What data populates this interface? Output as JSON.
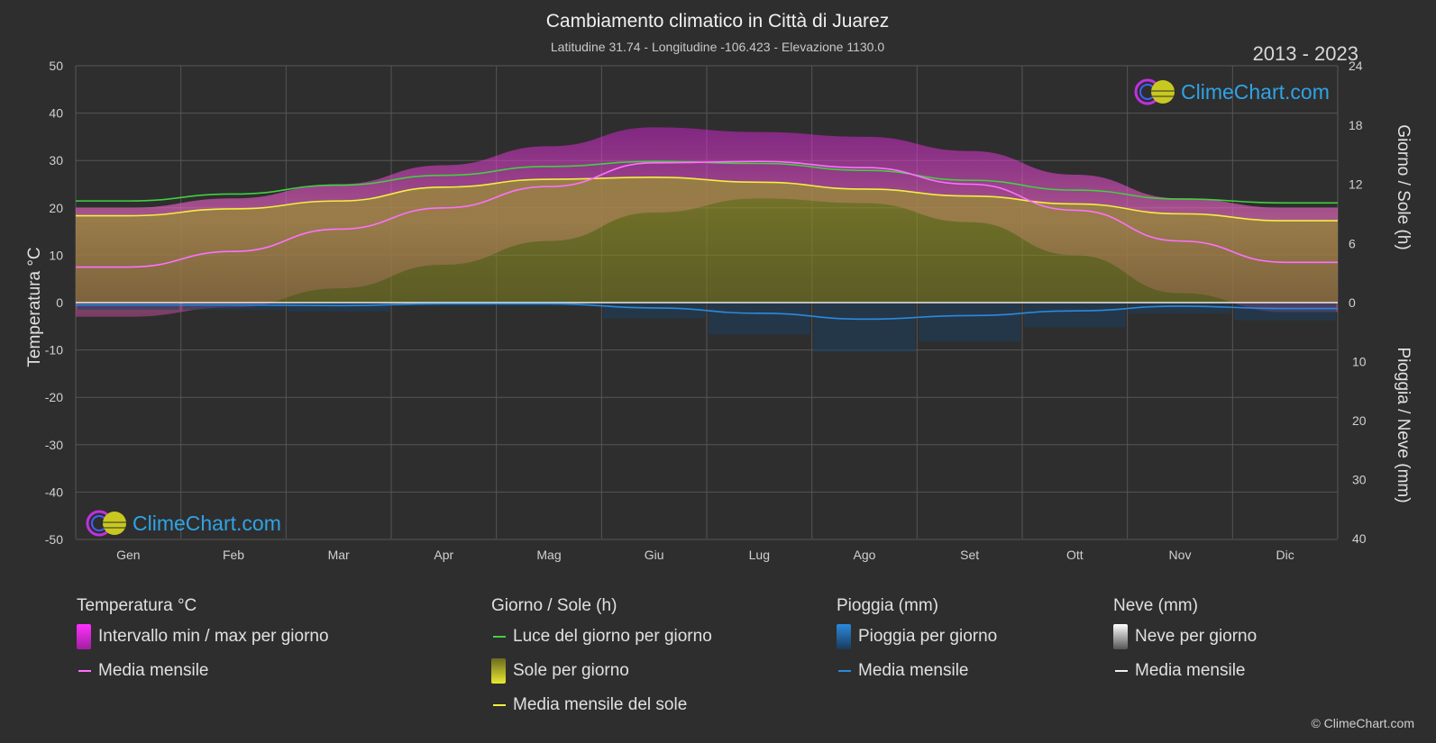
{
  "title": "Cambiamento climatico in Città di Juarez",
  "subtitle": "Latitudine 31.74 - Longitudine -106.423 - Elevazione 1130.0",
  "year_range": "2013 - 2023",
  "brand": "ClimeChart.com",
  "copyright": "© ClimeChart.com",
  "colors": {
    "background": "#2e2e2e",
    "temp_band": "#e020e0",
    "temp_mean": "#ff70ff",
    "daylight": "#40d040",
    "sun_fill": "#b8b830",
    "sun_mean": "#f0f040",
    "rain": "#2a8adf",
    "rain_mean": "#2a8adf",
    "snow": "#cfcfcf",
    "brand_text": "#2fa3e6"
  },
  "legend": {
    "temperature": {
      "heading": "Temperatura °C",
      "items": [
        {
          "label": "Intervallo min / max per giorno",
          "swatch": "box",
          "color": "#e020e0"
        },
        {
          "label": "Media mensile",
          "swatch": "line",
          "color": "#ff70ff"
        }
      ]
    },
    "daylight": {
      "heading": "Giorno / Sole (h)",
      "items": [
        {
          "label": "Luce del giorno per giorno",
          "swatch": "line",
          "color": "#40d040"
        },
        {
          "label": "Sole per giorno",
          "swatch": "box",
          "color": "#c8c838"
        },
        {
          "label": "Media mensile del sole",
          "swatch": "line",
          "color": "#f0f040"
        }
      ]
    },
    "rain": {
      "heading": "Pioggia (mm)",
      "items": [
        {
          "label": "Pioggia per giorno",
          "swatch": "box",
          "color": "#2a8adf"
        },
        {
          "label": "Media mensile",
          "swatch": "line",
          "color": "#2a8adf"
        }
      ]
    },
    "snow": {
      "heading": "Neve (mm)",
      "items": [
        {
          "label": "Neve per giorno",
          "swatch": "box",
          "color": "#d8d8d8"
        },
        {
          "label": "Media mensile",
          "swatch": "line",
          "color": "#f0f0f0"
        }
      ]
    }
  },
  "chart_data": {
    "type": "area",
    "categories": [
      "Gen",
      "Feb",
      "Mar",
      "Apr",
      "Mag",
      "Giu",
      "Lug",
      "Ago",
      "Set",
      "Ott",
      "Nov",
      "Dic"
    ],
    "y_left": {
      "label": "Temperatura °C",
      "ylim": [
        -50,
        50
      ],
      "ticks": [
        50,
        40,
        30,
        20,
        10,
        0,
        -10,
        -20,
        -30,
        -40,
        -50
      ]
    },
    "y_right_top": {
      "label": "Giorno / Sole (h)",
      "ylim": [
        0,
        24
      ],
      "ticks": [
        24,
        18,
        12,
        6,
        0
      ]
    },
    "y_right_bottom": {
      "label": "Pioggia / Neve (mm)",
      "ylim": [
        0,
        40
      ],
      "ticks": [
        0,
        10,
        20,
        30,
        40
      ]
    },
    "grid": true,
    "series": [
      {
        "name": "Media mensile",
        "unit": "°C",
        "values": [
          7.5,
          10.8,
          15.5,
          20.0,
          24.5,
          29.5,
          29.8,
          28.5,
          25.0,
          19.5,
          13.0,
          8.5
        ]
      },
      {
        "name": "Intervallo min / max per giorno (max)",
        "unit": "°C",
        "values": [
          20,
          22,
          25,
          29,
          33,
          37,
          36,
          35,
          32,
          27,
          22,
          20
        ]
      },
      {
        "name": "Intervallo min / max per giorno (min)",
        "unit": "°C",
        "values": [
          -3,
          -1,
          3,
          8,
          13,
          19,
          22,
          21,
          17,
          10,
          2,
          -2
        ]
      },
      {
        "name": "Luce del giorno per giorno",
        "unit": "h",
        "values": [
          10.3,
          11.0,
          11.9,
          12.9,
          13.8,
          14.3,
          14.1,
          13.4,
          12.4,
          11.4,
          10.5,
          10.1
        ]
      },
      {
        "name": "Media mensile del sole",
        "unit": "h",
        "values": [
          8.8,
          9.5,
          10.3,
          11.7,
          12.5,
          12.7,
          12.2,
          11.5,
          10.8,
          10.0,
          9.0,
          8.3
        ]
      },
      {
        "name": "Media mensile (pioggia)",
        "unit": "mm",
        "values": [
          0.4,
          0.4,
          0.5,
          0.2,
          0.2,
          0.9,
          1.8,
          2.8,
          2.2,
          1.4,
          0.6,
          1.0
        ]
      },
      {
        "name": "Media mensile (neve)",
        "unit": "mm",
        "values": [
          0.1,
          0.1,
          0.0,
          0.0,
          0.0,
          0.0,
          0.0,
          0.0,
          0.0,
          0.0,
          0.0,
          0.1
        ]
      }
    ]
  }
}
